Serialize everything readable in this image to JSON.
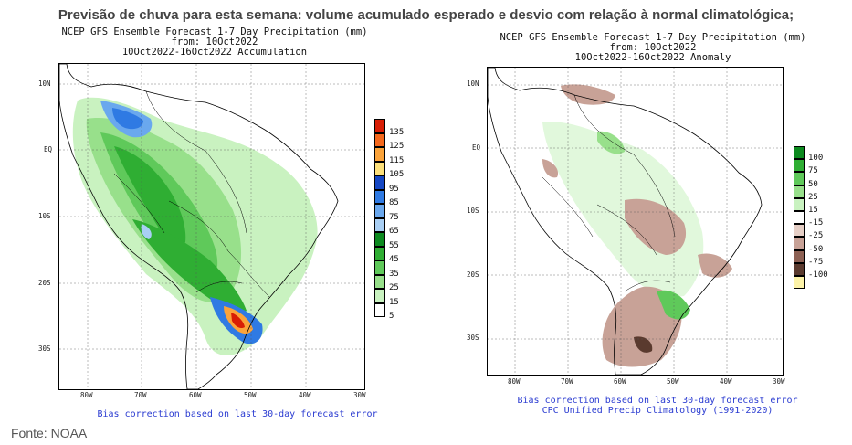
{
  "headline": "Previsão de chuva para esta semana: volume acumulado esperado e desvio com relação à normal climatológica;",
  "left_map": {
    "title_lines": [
      "NCEP GFS Ensemble Forecast 1-7 Day Precipitation (mm)",
      "from: 10Oct2022",
      "10Oct2022-16Oct2022 Accumulation"
    ],
    "lat_labels": [
      "10N",
      "EQ",
      "10S",
      "20S",
      "30S"
    ],
    "lon_labels": [
      "80W",
      "70W",
      "60W",
      "50W",
      "40W",
      "30W"
    ],
    "note_lines": [
      "Bias correction based on last 30-day forecast error"
    ],
    "legend": [
      {
        "label": "135",
        "color": "#d81e05"
      },
      {
        "label": "125",
        "color": "#f5681c"
      },
      {
        "label": "115",
        "color": "#fba33a"
      },
      {
        "label": "105",
        "color": "#fde07a"
      },
      {
        "label": "95",
        "color": "#1547c4"
      },
      {
        "label": "85",
        "color": "#2f7ae3"
      },
      {
        "label": "75",
        "color": "#6aa8ee"
      },
      {
        "label": "65",
        "color": "#a9cff4"
      },
      {
        "label": "55",
        "color": "#0c8a1f"
      },
      {
        "label": "45",
        "color": "#2fae33"
      },
      {
        "label": "35",
        "color": "#5fc95a"
      },
      {
        "label": "25",
        "color": "#98e08b"
      },
      {
        "label": "15",
        "color": "#c9f2c0"
      },
      {
        "label": "5",
        "color": "#ffffff"
      }
    ]
  },
  "right_map": {
    "title_lines": [
      "NCEP GFS Ensemble Forecast 1-7 Day Precipitation (mm)",
      "from: 10Oct2022",
      "10Oct2022-16Oct2022 Anomaly"
    ],
    "lat_labels": [
      "10N",
      "EQ",
      "10S",
      "20S",
      "30S"
    ],
    "lon_labels": [
      "80W",
      "70W",
      "60W",
      "50W",
      "40W",
      "30W"
    ],
    "note_lines": [
      "Bias correction based on last 30-day forecast error",
      "CPC Unified Precip Climatology (1991-2020)"
    ],
    "legend": [
      {
        "label": "100",
        "color": "#0c8a1f"
      },
      {
        "label": "75",
        "color": "#2fae33"
      },
      {
        "label": "50",
        "color": "#5fc95a"
      },
      {
        "label": "25",
        "color": "#98e08b"
      },
      {
        "label": "15",
        "color": "#c9f2c0"
      },
      {
        "label": "-15",
        "color": "#ffffff"
      },
      {
        "label": "-25",
        "color": "#e6cfc6"
      },
      {
        "label": "-50",
        "color": "#c8a297"
      },
      {
        "label": "-75",
        "color": "#8d6154"
      },
      {
        "label": "-100",
        "color": "#5a3a2e"
      },
      {
        "label": "",
        "color": "#fdf3a8"
      }
    ]
  },
  "source": "Fonte: NOAA"
}
